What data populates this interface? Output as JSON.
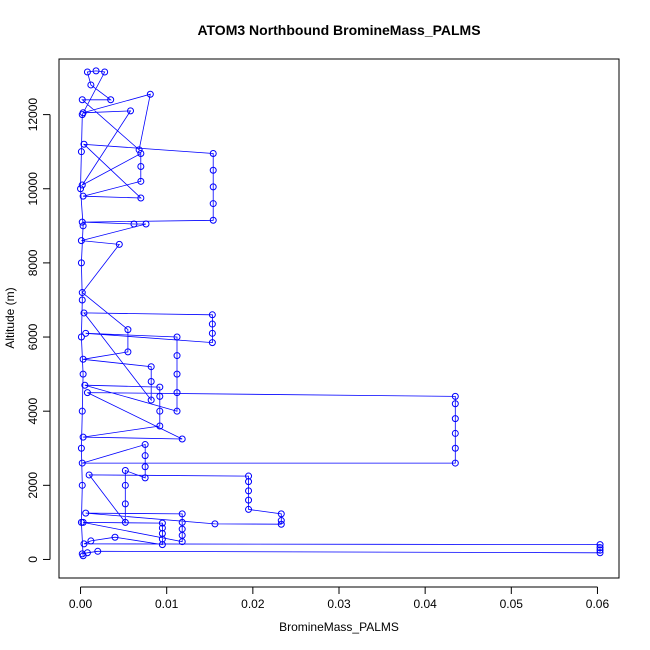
{
  "chart_data": {
    "type": "scatter",
    "title": "ATOM3 Northbound BromineMass_PALMS",
    "xlabel": "BromineMass_PALMS",
    "ylabel": "Altitude (m)",
    "xlim": [
      -0.0025,
      0.0625
    ],
    "ylim": [
      -500,
      13500
    ],
    "x_ticks": [
      "0.00",
      "0.01",
      "0.02",
      "0.03",
      "0.04",
      "0.05",
      "0.06"
    ],
    "y_ticks": [
      "0",
      "2000",
      "4000",
      "6000",
      "8000",
      "10000",
      "12000"
    ],
    "x_tick_values": [
      0,
      0.01,
      0.02,
      0.03,
      0.04,
      0.05,
      0.06
    ],
    "y_tick_values": [
      0,
      2000,
      4000,
      6000,
      8000,
      10000,
      12000
    ],
    "color": "#0000ff",
    "marker": "open-circle",
    "connected": true,
    "legend": "none",
    "grid": false,
    "series": [
      {
        "values": [
          {
            "x": 0.0002,
            "y": 150
          },
          {
            "x": 0.0008,
            "y": 180
          },
          {
            "x": 0.002,
            "y": 220
          },
          {
            "x": 0.0603,
            "y": 180
          },
          {
            "x": 0.0603,
            "y": 250
          },
          {
            "x": 0.0603,
            "y": 320
          },
          {
            "x": 0.0603,
            "y": 400
          },
          {
            "x": 0.0004,
            "y": 420
          },
          {
            "x": 0.0012,
            "y": 500
          },
          {
            "x": 0.004,
            "y": 600
          },
          {
            "x": 0.0095,
            "y": 400
          },
          {
            "x": 0.0095,
            "y": 550
          },
          {
            "x": 0.0095,
            "y": 700
          },
          {
            "x": 0.0095,
            "y": 850
          },
          {
            "x": 0.0095,
            "y": 980
          },
          {
            "x": 0.0003,
            "y": 1000
          },
          {
            "x": 0.0118,
            "y": 480
          },
          {
            "x": 0.0118,
            "y": 650
          },
          {
            "x": 0.0118,
            "y": 820
          },
          {
            "x": 0.0118,
            "y": 1000
          },
          {
            "x": 0.0118,
            "y": 1230
          },
          {
            "x": 0.0006,
            "y": 1250
          },
          {
            "x": 0.0156,
            "y": 960
          },
          {
            "x": 0.0233,
            "y": 950
          },
          {
            "x": 0.0233,
            "y": 1050
          },
          {
            "x": 0.0233,
            "y": 1230
          },
          {
            "x": 0.0195,
            "y": 1350
          },
          {
            "x": 0.0195,
            "y": 1600
          },
          {
            "x": 0.0195,
            "y": 1850
          },
          {
            "x": 0.0195,
            "y": 2100
          },
          {
            "x": 0.0195,
            "y": 2250
          },
          {
            "x": 0.001,
            "y": 2280
          },
          {
            "x": 0.0052,
            "y": 1000
          },
          {
            "x": 0.0052,
            "y": 1500
          },
          {
            "x": 0.0052,
            "y": 2000
          },
          {
            "x": 0.0052,
            "y": 2400
          },
          {
            "x": 0.0075,
            "y": 2200
          },
          {
            "x": 0.0075,
            "y": 2500
          },
          {
            "x": 0.0075,
            "y": 2800
          },
          {
            "x": 0.0075,
            "y": 3100
          },
          {
            "x": 0.0002,
            "y": 2600
          },
          {
            "x": 0.0435,
            "y": 2600
          },
          {
            "x": 0.0435,
            "y": 3000
          },
          {
            "x": 0.0435,
            "y": 3400
          },
          {
            "x": 0.0435,
            "y": 3800
          },
          {
            "x": 0.0435,
            "y": 4200
          },
          {
            "x": 0.0435,
            "y": 4400
          },
          {
            "x": 0.0008,
            "y": 4500
          },
          {
            "x": 0.0118,
            "y": 3250
          },
          {
            "x": 0.0003,
            "y": 3300
          },
          {
            "x": 0.0092,
            "y": 3600
          },
          {
            "x": 0.0092,
            "y": 4000
          },
          {
            "x": 0.0092,
            "y": 4400
          },
          {
            "x": 0.0092,
            "y": 4650
          },
          {
            "x": 0.0005,
            "y": 4700
          },
          {
            "x": 0.0112,
            "y": 4000
          },
          {
            "x": 0.0112,
            "y": 4500
          },
          {
            "x": 0.0112,
            "y": 5000
          },
          {
            "x": 0.0112,
            "y": 5500
          },
          {
            "x": 0.0112,
            "y": 6000
          },
          {
            "x": 0.0006,
            "y": 6100
          },
          {
            "x": 0.0153,
            "y": 5850
          },
          {
            "x": 0.0153,
            "y": 6100
          },
          {
            "x": 0.0153,
            "y": 6350
          },
          {
            "x": 0.0153,
            "y": 6600
          },
          {
            "x": 0.0004,
            "y": 6650
          },
          {
            "x": 0.0082,
            "y": 4300
          },
          {
            "x": 0.0082,
            "y": 4800
          },
          {
            "x": 0.0082,
            "y": 5200
          },
          {
            "x": 0.0003,
            "y": 5400
          },
          {
            "x": 0.0055,
            "y": 5600
          },
          {
            "x": 0.0055,
            "y": 6200
          },
          {
            "x": 0.0002,
            "y": 7200
          },
          {
            "x": 0.0045,
            "y": 8500
          },
          {
            "x": 0.0001,
            "y": 8600
          },
          {
            "x": 0.0076,
            "y": 9050
          },
          {
            "x": 0.0062,
            "y": 9050
          },
          {
            "x": 0.0002,
            "y": 9100
          },
          {
            "x": 0.0154,
            "y": 9150
          },
          {
            "x": 0.0154,
            "y": 9600
          },
          {
            "x": 0.0154,
            "y": 10050
          },
          {
            "x": 0.0154,
            "y": 10500
          },
          {
            "x": 0.0154,
            "y": 10950
          },
          {
            "x": 0.0004,
            "y": 11200
          },
          {
            "x": 0.007,
            "y": 9750
          },
          {
            "x": 0.0003,
            "y": 9800
          },
          {
            "x": 0.007,
            "y": 10200
          },
          {
            "x": 0.007,
            "y": 10600
          },
          {
            "x": 0.007,
            "y": 10950
          },
          {
            "x": 0.0002,
            "y": 10100
          },
          {
            "x": 0.0058,
            "y": 12100
          },
          {
            "x": 0.0003,
            "y": 12050
          },
          {
            "x": 0.0081,
            "y": 12550
          },
          {
            "x": 0.0068,
            "y": 11050
          },
          {
            "x": 0.0002,
            "y": 12400
          },
          {
            "x": 0.0035,
            "y": 12400
          },
          {
            "x": 0.0012,
            "y": 12800
          },
          {
            "x": 0.0008,
            "y": 13150
          },
          {
            "x": 0.0018,
            "y": 13180
          },
          {
            "x": 0.0028,
            "y": 13150
          },
          {
            "x": 0.0002,
            "y": 12000
          },
          {
            "x": 0.0001,
            "y": 11000
          },
          {
            "x": 0.0,
            "y": 10000
          },
          {
            "x": 0.0003,
            "y": 9000
          },
          {
            "x": 0.0001,
            "y": 8000
          },
          {
            "x": 0.0002,
            "y": 7000
          },
          {
            "x": 0.0001,
            "y": 6000
          },
          {
            "x": 0.0003,
            "y": 5000
          },
          {
            "x": 0.0002,
            "y": 4000
          },
          {
            "x": 0.0001,
            "y": 3000
          },
          {
            "x": 0.0002,
            "y": 2000
          },
          {
            "x": 0.0001,
            "y": 1000
          },
          {
            "x": 0.0003,
            "y": 100
          }
        ]
      }
    ]
  }
}
